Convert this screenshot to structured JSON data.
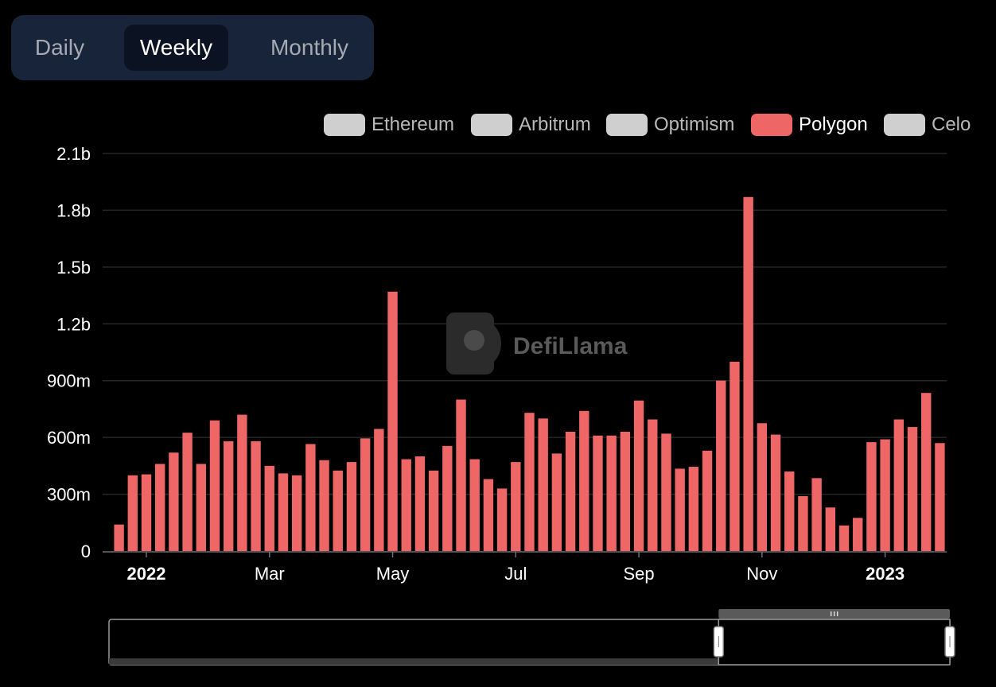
{
  "tabs": [
    {
      "label": "Daily",
      "active": false
    },
    {
      "label": "Weekly",
      "active": true
    },
    {
      "label": "Monthly",
      "active": false
    }
  ],
  "legend": [
    {
      "name": "Ethereum",
      "color": "#cfcfcf",
      "active": false
    },
    {
      "name": "Arbitrum",
      "color": "#cfcfcf",
      "active": false
    },
    {
      "name": "Optimism",
      "color": "#cfcfcf",
      "active": false
    },
    {
      "name": "Polygon",
      "color": "#ee6666",
      "active": true
    },
    {
      "name": "Celo",
      "color": "#cfcfcf",
      "active": false
    }
  ],
  "watermark": "DefiLlama",
  "chart_data": {
    "type": "bar",
    "series": [
      {
        "name": "Polygon",
        "color": "#ee6666",
        "values": [
          0.14,
          0.4,
          0.405,
          0.46,
          0.52,
          0.625,
          0.46,
          0.69,
          0.58,
          0.72,
          0.58,
          0.45,
          0.41,
          0.4,
          0.565,
          0.48,
          0.425,
          0.47,
          0.595,
          0.645,
          1.37,
          0.485,
          0.5,
          0.425,
          0.555,
          0.8,
          0.485,
          0.38,
          0.33,
          0.47,
          0.73,
          0.7,
          0.515,
          0.63,
          0.74,
          0.61,
          0.61,
          0.63,
          0.795,
          0.695,
          0.62,
          0.435,
          0.445,
          0.53,
          0.9,
          1.0,
          1.87,
          0.675,
          0.615,
          0.42,
          0.29,
          0.385,
          0.23,
          0.135,
          0.175,
          0.575,
          0.59,
          0.695,
          0.655,
          0.835,
          0.57
        ]
      }
    ],
    "unit": "b",
    "ylim": [
      0,
      2.1
    ],
    "yticks": [
      {
        "value": 0,
        "label": "0"
      },
      {
        "value": 0.3,
        "label": "300m"
      },
      {
        "value": 0.6,
        "label": "600m"
      },
      {
        "value": 0.9,
        "label": "900m"
      },
      {
        "value": 1.2,
        "label": "1.2b"
      },
      {
        "value": 1.5,
        "label": "1.5b"
      },
      {
        "value": 1.8,
        "label": "1.8b"
      },
      {
        "value": 2.1,
        "label": "2.1b"
      }
    ],
    "xticks": [
      {
        "label": "2022",
        "index": 2,
        "bold": true
      },
      {
        "label": "Mar",
        "index": 11,
        "bold": false
      },
      {
        "label": "May",
        "index": 20,
        "bold": false
      },
      {
        "label": "Jul",
        "index": 29,
        "bold": false
      },
      {
        "label": "Sep",
        "index": 38,
        "bold": false
      },
      {
        "label": "Nov",
        "index": 47,
        "bold": false
      },
      {
        "label": "2023",
        "index": 56,
        "bold": true
      }
    ],
    "grid": true,
    "legend_position": "top-right",
    "zoom_range": [
      0.725,
      1.0
    ]
  }
}
